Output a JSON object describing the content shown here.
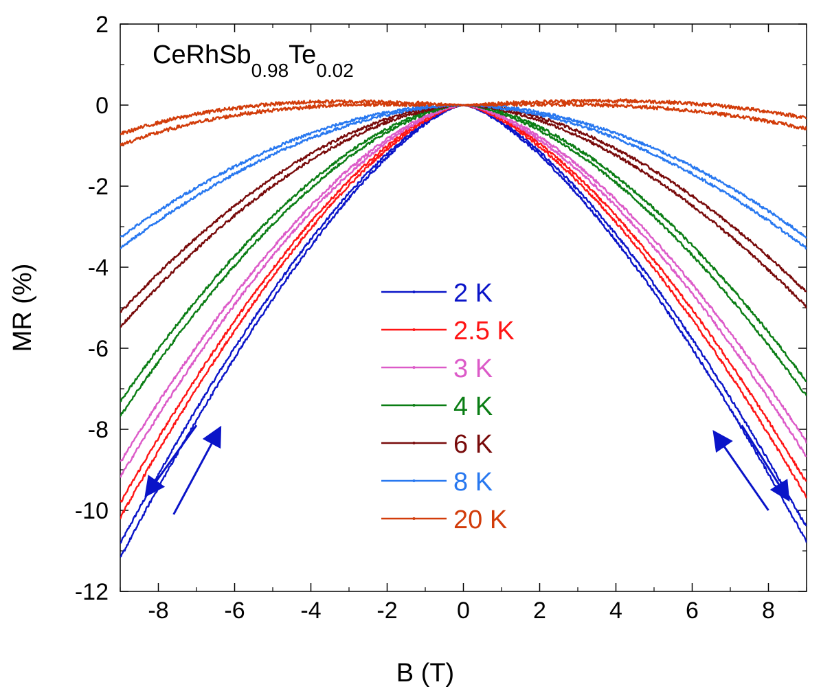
{
  "chart_data": {
    "type": "line",
    "title": "CeRhSb0.98Te0.02",
    "title_parts": {
      "base": "CeRhSb",
      "sub1": "0.98",
      "mid": "Te",
      "sub2": "0.02"
    },
    "xlabel": "B (T)",
    "ylabel": "MR (%)",
    "xlim": [
      -9,
      9
    ],
    "ylim": [
      -12,
      2
    ],
    "xticks": [
      -8,
      -6,
      -4,
      -2,
      0,
      2,
      4,
      6,
      8
    ],
    "yticks": [
      2,
      0,
      -2,
      -4,
      -6,
      -8,
      -10,
      -12
    ],
    "legend_position": "center",
    "series": [
      {
        "name": "2 K",
        "label": "2 K",
        "color": "#0a14c8",
        "end_left": -11.0,
        "end_right": -10.6,
        "asym": 0.02
      },
      {
        "name": "2.5 K",
        "label": "2.5 K",
        "color": "#ff1414",
        "end_left": -10.0,
        "end_right": -9.5,
        "asym": 0.02
      },
      {
        "name": "3 K",
        "label": "3 K",
        "color": "#dc5ac8",
        "end_left": -9.0,
        "end_right": -8.5,
        "asym": 0.02
      },
      {
        "name": "4 K",
        "label": "4 K",
        "color": "#0a7d14",
        "end_left": -7.5,
        "end_right": -7.0,
        "asym": 0.02
      },
      {
        "name": "6 K",
        "label": "6 K",
        "color": "#780a0a",
        "end_left": -5.3,
        "end_right": -4.8,
        "asym": 0.02
      },
      {
        "name": "8 K",
        "label": "8 K",
        "color": "#2878f0",
        "end_left": -3.4,
        "end_right": -3.4,
        "asym": 0.015
      },
      {
        "name": "20 K",
        "label": "20 K",
        "color": "#d23c0a",
        "end_left": -0.85,
        "end_right": -0.45,
        "asym": 0.015
      }
    ],
    "curve_shape": {
      "2 K": {
        "power": 1.45
      },
      "2.5 K": {
        "power": 1.5
      },
      "3 K": {
        "power": 1.55
      },
      "4 K": {
        "power": 1.65
      },
      "6 K": {
        "power": 1.75
      },
      "8 K": {
        "power": 1.85
      },
      "20 K": {
        "power": 2.0
      }
    },
    "annotations": [
      {
        "type": "sweep-arrows",
        "side": "left",
        "color": "#0a14c8"
      },
      {
        "type": "sweep-arrows",
        "side": "right",
        "color": "#0a14c8"
      }
    ]
  }
}
